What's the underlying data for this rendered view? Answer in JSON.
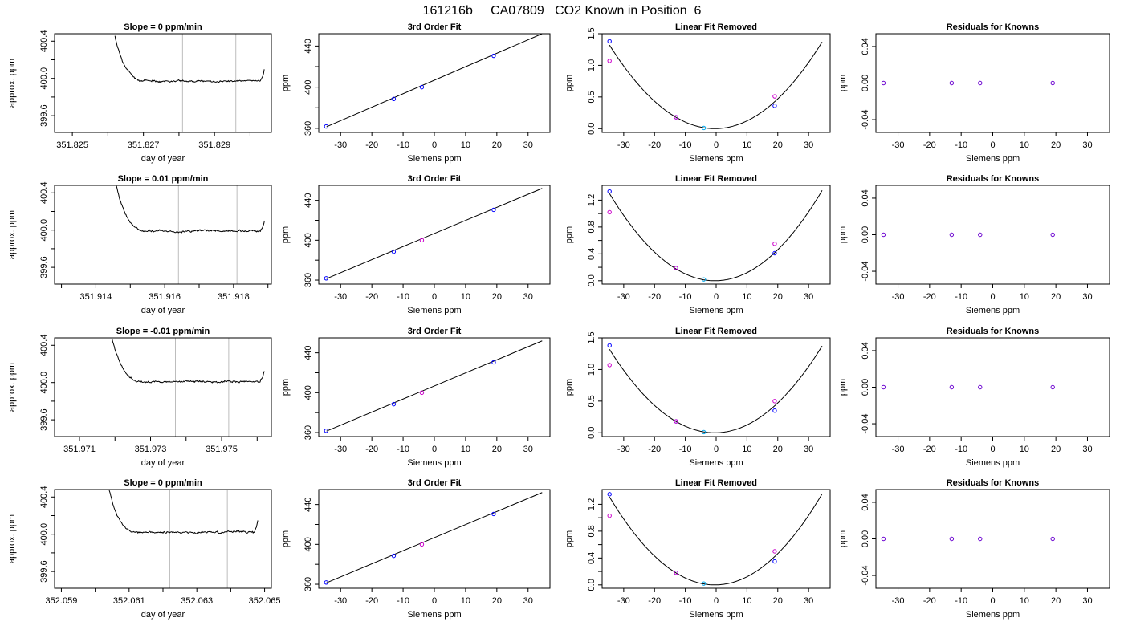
{
  "figure_title": "161216b     CA07809   CO2 Known in Position  6",
  "colors": {
    "marker_blue": "#0000ff",
    "marker_magenta": "#cc00cc",
    "marker_cyan": "#00aaee",
    "grid_vline": "#bdbdbd",
    "line": "#000000"
  },
  "chart_data": [
    {
      "row": 1,
      "col": 1,
      "type": "line",
      "title": "Slope =  0  ppm/min",
      "xlabel": "day of year",
      "ylabel": "approx. ppm",
      "xlim": [
        351.8245,
        351.8306
      ],
      "ylim": [
        399.42,
        400.48
      ],
      "xticks": [
        351.825,
        351.826,
        351.827,
        351.828,
        351.829,
        351.83
      ],
      "xticklabels": [
        "351.825",
        "",
        "351.827",
        "",
        "351.829",
        ""
      ],
      "yticks": [
        399.6,
        399.8,
        400.0,
        400.2,
        400.4
      ],
      "yticklabels": [
        "399.6",
        "",
        "400.0",
        "",
        "400.4"
      ],
      "vlines": [
        351.8281,
        351.8296
      ],
      "trace": {
        "x0": 351.8262,
        "x1": 351.8304,
        "level": 399.97,
        "noise": 0.012,
        "edge_left": 351.8264,
        "edge_right": 351.8303,
        "seed": 11
      }
    },
    {
      "row": 1,
      "col": 2,
      "type": "scatter",
      "title": "3rd Order Fit",
      "xlabel": "Siemens ppm",
      "ylabel": "ppm",
      "xlim": [
        -37,
        37
      ],
      "ylim": [
        356,
        452
      ],
      "xticks": [
        -30,
        -20,
        -10,
        0,
        10,
        20,
        30
      ],
      "yticks": [
        360,
        380,
        400,
        420,
        440
      ],
      "yticklabels": [
        "360",
        "",
        "400",
        "",
        "440"
      ],
      "line": {
        "x": [
          -34.5,
          34.5
        ],
        "y": [
          361.5,
          452
        ]
      },
      "points": [
        {
          "x": -34.6,
          "y": 361.8,
          "c": "blue"
        },
        {
          "x": -13,
          "y": 388.5,
          "c": "blue"
        },
        {
          "x": -4,
          "y": 400,
          "c": "blue"
        },
        {
          "x": 19,
          "y": 430.5,
          "c": "blue"
        }
      ]
    },
    {
      "row": 1,
      "col": 3,
      "type": "scatter",
      "title": "Linear Fit Removed",
      "xlabel": "Siemens ppm",
      "ylabel": "ppm",
      "xlim": [
        -37,
        37
      ],
      "ylim": [
        -0.06,
        1.5
      ],
      "xticks": [
        -30,
        -20,
        -10,
        0,
        10,
        20,
        30
      ],
      "yticks": [
        0,
        0.5,
        1.0,
        1.5
      ],
      "yticklabels": [
        "0.0",
        "0.5",
        "1.0",
        "1.5"
      ],
      "curve": {
        "a": 0.00113,
        "b": 0.00095,
        "c": 0.0
      },
      "points": [
        {
          "x": -34.6,
          "y": 1.38,
          "c": "blue"
        },
        {
          "x": -34.6,
          "y": 1.07,
          "c": "magenta"
        },
        {
          "x": -13,
          "y": 0.18,
          "c": "blue"
        },
        {
          "x": -13,
          "y": 0.18,
          "c": "magenta"
        },
        {
          "x": -4,
          "y": 0.01,
          "c": "cyan"
        },
        {
          "x": 19,
          "y": 0.36,
          "c": "blue"
        },
        {
          "x": 19,
          "y": 0.51,
          "c": "magenta"
        }
      ]
    },
    {
      "row": 1,
      "col": 4,
      "type": "scatter",
      "title": "Residuals for Knowns",
      "xlabel": "Siemens ppm",
      "ylabel": "ppm",
      "xlim": [
        -37,
        37
      ],
      "ylim": [
        -0.054,
        0.054
      ],
      "xticks": [
        -30,
        -20,
        -10,
        0,
        10,
        20,
        30
      ],
      "yticks": [
        -0.04,
        0,
        0.04
      ],
      "yticklabels": [
        "-0.04",
        "0.00",
        "0.04"
      ],
      "points": [
        {
          "x": -34.6,
          "y": 0,
          "c": "purple"
        },
        {
          "x": -13,
          "y": 0,
          "c": "purple"
        },
        {
          "x": -4,
          "y": 0,
          "c": "purple"
        },
        {
          "x": 19,
          "y": 0,
          "c": "purple"
        }
      ]
    },
    {
      "row": 2,
      "col": 1,
      "type": "line",
      "title": "Slope =  0.01  ppm/min",
      "xlabel": "day of year",
      "ylabel": "approx. ppm",
      "xlim": [
        351.9128,
        351.9191
      ],
      "ylim": [
        399.42,
        400.48
      ],
      "xticks": [
        351.913,
        351.914,
        351.915,
        351.916,
        351.917,
        351.918,
        351.919
      ],
      "xticklabels": [
        "",
        "351.914",
        "",
        "351.916",
        "",
        "351.918",
        ""
      ],
      "yticks": [
        399.6,
        399.8,
        400.0,
        400.2,
        400.4
      ],
      "yticklabels": [
        "399.6",
        "",
        "400.0",
        "",
        "400.4"
      ],
      "vlines": [
        351.9164,
        351.9181
      ],
      "trace": {
        "x0": 351.9146,
        "x1": 351.9189,
        "level": 399.99,
        "noise": 0.012,
        "edge_left": 351.9148,
        "edge_right": 351.9188,
        "seed": 23
      }
    },
    {
      "row": 2,
      "col": 2,
      "type": "scatter",
      "title": "3rd Order Fit",
      "xlabel": "Siemens ppm",
      "ylabel": "ppm",
      "xlim": [
        -37,
        37
      ],
      "ylim": [
        356,
        455
      ],
      "xticks": [
        -30,
        -20,
        -10,
        0,
        10,
        20,
        30
      ],
      "yticks": [
        360,
        380,
        400,
        420,
        440
      ],
      "yticklabels": [
        "360",
        "",
        "400",
        "",
        "440"
      ],
      "line": {
        "x": [
          -34.5,
          34.5
        ],
        "y": [
          361.5,
          452
        ]
      },
      "points": [
        {
          "x": -34.6,
          "y": 361.8,
          "c": "blue"
        },
        {
          "x": -13,
          "y": 388.5,
          "c": "blue"
        },
        {
          "x": -4,
          "y": 400,
          "c": "magenta"
        },
        {
          "x": 19,
          "y": 430.5,
          "c": "blue"
        }
      ]
    },
    {
      "row": 2,
      "col": 3,
      "type": "scatter",
      "title": "Linear Fit Removed",
      "xlabel": "Siemens ppm",
      "ylabel": "ppm",
      "xlim": [
        -37,
        37
      ],
      "ylim": [
        -0.05,
        1.42
      ],
      "xticks": [
        -30,
        -20,
        -10,
        0,
        10,
        20,
        30
      ],
      "yticks": [
        0,
        0.2,
        0.4,
        0.6,
        0.8,
        1.0,
        1.2
      ],
      "yticklabels": [
        "0.0",
        "0.4",
        "0.8",
        "1.2"
      ],
      "yticklabelvals": [
        0,
        0.4,
        0.8,
        1.2
      ],
      "curve": {
        "a": 0.00111,
        "b": 0.0009,
        "c": 0.0
      },
      "points": [
        {
          "x": -34.6,
          "y": 1.33,
          "c": "blue"
        },
        {
          "x": -34.6,
          "y": 1.02,
          "c": "magenta"
        },
        {
          "x": -13,
          "y": 0.19,
          "c": "blue"
        },
        {
          "x": -13,
          "y": 0.19,
          "c": "magenta"
        },
        {
          "x": -4,
          "y": 0.02,
          "c": "cyan"
        },
        {
          "x": 19,
          "y": 0.41,
          "c": "blue"
        },
        {
          "x": 19,
          "y": 0.55,
          "c": "magenta"
        }
      ]
    },
    {
      "row": 2,
      "col": 4,
      "type": "scatter",
      "title": "Residuals for Knowns",
      "xlabel": "Siemens ppm",
      "ylabel": "ppm",
      "xlim": [
        -37,
        37
      ],
      "ylim": [
        -0.054,
        0.054
      ],
      "xticks": [
        -30,
        -20,
        -10,
        0,
        10,
        20,
        30
      ],
      "yticks": [
        -0.04,
        0,
        0.04
      ],
      "yticklabels": [
        "-0.04",
        "0.00",
        "0.04"
      ],
      "points": [
        {
          "x": -34.6,
          "y": 0,
          "c": "purple"
        },
        {
          "x": -13,
          "y": 0,
          "c": "purple"
        },
        {
          "x": -4,
          "y": 0,
          "c": "purple"
        },
        {
          "x": 19,
          "y": 0,
          "c": "purple"
        }
      ]
    },
    {
      "row": 3,
      "col": 1,
      "type": "line",
      "title": "Slope =  -0.01  ppm/min",
      "xlabel": "day of year",
      "ylabel": "approx. ppm",
      "xlim": [
        351.9703,
        351.9764
      ],
      "ylim": [
        399.42,
        400.48
      ],
      "xticks": [
        351.971,
        351.972,
        351.973,
        351.974,
        351.975,
        351.976
      ],
      "xticklabels": [
        "351.971",
        "",
        "351.973",
        "",
        "351.975",
        ""
      ],
      "yticks": [
        399.6,
        399.8,
        400.0,
        400.2,
        400.4
      ],
      "yticklabels": [
        "399.6",
        "",
        "400.0",
        "",
        "400.4"
      ],
      "vlines": [
        351.9737,
        351.9752
      ],
      "trace": {
        "x0": 351.9719,
        "x1": 351.9762,
        "level": 400.01,
        "noise": 0.012,
        "edge_left": 351.9721,
        "edge_right": 351.9761,
        "seed": 37
      }
    },
    {
      "row": 3,
      "col": 2,
      "type": "scatter",
      "title": "3rd Order Fit",
      "xlabel": "Siemens ppm",
      "ylabel": "ppm",
      "xlim": [
        -37,
        37
      ],
      "ylim": [
        356,
        455
      ],
      "xticks": [
        -30,
        -20,
        -10,
        0,
        10,
        20,
        30
      ],
      "yticks": [
        360,
        380,
        400,
        420,
        440
      ],
      "yticklabels": [
        "360",
        "",
        "400",
        "",
        "440"
      ],
      "line": {
        "x": [
          -34.5,
          34.5
        ],
        "y": [
          361.5,
          452
        ]
      },
      "points": [
        {
          "x": -34.6,
          "y": 361.8,
          "c": "blue"
        },
        {
          "x": -13,
          "y": 388.5,
          "c": "blue"
        },
        {
          "x": -4,
          "y": 400,
          "c": "magenta"
        },
        {
          "x": 19,
          "y": 430.5,
          "c": "blue"
        }
      ]
    },
    {
      "row": 3,
      "col": 3,
      "type": "scatter",
      "title": "Linear Fit Removed",
      "xlabel": "Siemens ppm",
      "ylabel": "ppm",
      "xlim": [
        -37,
        37
      ],
      "ylim": [
        -0.06,
        1.5
      ],
      "xticks": [
        -30,
        -20,
        -10,
        0,
        10,
        20,
        30
      ],
      "yticks": [
        0,
        0.5,
        1.0,
        1.5
      ],
      "yticklabels": [
        "0.0",
        "0.5",
        "1.0",
        "1.5"
      ],
      "curve": {
        "a": 0.00113,
        "b": 0.001,
        "c": 0.0
      },
      "points": [
        {
          "x": -34.6,
          "y": 1.38,
          "c": "blue"
        },
        {
          "x": -34.6,
          "y": 1.07,
          "c": "magenta"
        },
        {
          "x": -13,
          "y": 0.18,
          "c": "blue"
        },
        {
          "x": -13,
          "y": 0.18,
          "c": "magenta"
        },
        {
          "x": -4,
          "y": 0.01,
          "c": "cyan"
        },
        {
          "x": 19,
          "y": 0.35,
          "c": "blue"
        },
        {
          "x": 19,
          "y": 0.5,
          "c": "magenta"
        }
      ]
    },
    {
      "row": 3,
      "col": 4,
      "type": "scatter",
      "title": "Residuals for Knowns",
      "xlabel": "Siemens ppm",
      "ylabel": "ppm",
      "xlim": [
        -37,
        37
      ],
      "ylim": [
        -0.054,
        0.054
      ],
      "xticks": [
        -30,
        -20,
        -10,
        0,
        10,
        20,
        30
      ],
      "yticks": [
        -0.04,
        0,
        0.04
      ],
      "yticklabels": [
        "-0.04",
        "0.00",
        "0.04"
      ],
      "points": [
        {
          "x": -34.6,
          "y": 0,
          "c": "purple"
        },
        {
          "x": -13,
          "y": 0,
          "c": "purple"
        },
        {
          "x": -4,
          "y": 0,
          "c": "purple"
        },
        {
          "x": 19,
          "y": 0,
          "c": "purple"
        }
      ]
    },
    {
      "row": 4,
      "col": 1,
      "type": "line",
      "title": "Slope =  0  ppm/min",
      "xlabel": "day of year",
      "ylabel": "approx. ppm",
      "xlim": [
        352.0588,
        352.0652
      ],
      "ylim": [
        399.42,
        400.48
      ],
      "xticks": [
        352.059,
        352.06,
        352.061,
        352.062,
        352.063,
        352.064,
        352.065
      ],
      "xticklabels": [
        "352.059",
        "",
        "352.061",
        "",
        "352.063",
        "",
        "352.065"
      ],
      "yticks": [
        399.6,
        399.8,
        400.0,
        400.2,
        400.4
      ],
      "yticklabels": [
        "399.6",
        "",
        "400.0",
        "",
        "400.4"
      ],
      "vlines": [
        352.0622,
        352.0639
      ],
      "trace": {
        "x0": 352.0604,
        "x1": 352.0648,
        "level": 400.02,
        "noise": 0.012,
        "edge_left": 352.0606,
        "edge_right": 352.0647,
        "seed": 53
      }
    },
    {
      "row": 4,
      "col": 2,
      "type": "scatter",
      "title": "3rd Order Fit",
      "xlabel": "Siemens ppm",
      "ylabel": "ppm",
      "xlim": [
        -37,
        37
      ],
      "ylim": [
        356,
        455
      ],
      "xticks": [
        -30,
        -20,
        -10,
        0,
        10,
        20,
        30
      ],
      "yticks": [
        360,
        380,
        400,
        420,
        440
      ],
      "yticklabels": [
        "360",
        "",
        "400",
        "",
        "440"
      ],
      "line": {
        "x": [
          -34.5,
          34.5
        ],
        "y": [
          361.5,
          452
        ]
      },
      "points": [
        {
          "x": -34.6,
          "y": 361.8,
          "c": "blue"
        },
        {
          "x": -13,
          "y": 388.5,
          "c": "blue"
        },
        {
          "x": -4,
          "y": 400,
          "c": "magenta"
        },
        {
          "x": 19,
          "y": 430.5,
          "c": "blue"
        }
      ]
    },
    {
      "row": 4,
      "col": 3,
      "type": "scatter",
      "title": "Linear Fit Removed",
      "xlabel": "Siemens ppm",
      "ylabel": "ppm",
      "xlim": [
        -37,
        37
      ],
      "ylim": [
        -0.05,
        1.42
      ],
      "xticks": [
        -30,
        -20,
        -10,
        0,
        10,
        20,
        30
      ],
      "yticks": [
        0,
        0.2,
        0.4,
        0.6,
        0.8,
        1.0,
        1.2
      ],
      "yticklabels": [
        "0.0",
        "0.4",
        "0.8",
        "1.2"
      ],
      "yticklabelvals": [
        0,
        0.4,
        0.8,
        1.2
      ],
      "curve": {
        "a": 0.00112,
        "b": 0.0009,
        "c": 0.0
      },
      "points": [
        {
          "x": -34.6,
          "y": 1.35,
          "c": "blue"
        },
        {
          "x": -34.6,
          "y": 1.03,
          "c": "magenta"
        },
        {
          "x": -13,
          "y": 0.18,
          "c": "blue"
        },
        {
          "x": -13,
          "y": 0.18,
          "c": "magenta"
        },
        {
          "x": -4,
          "y": 0.02,
          "c": "cyan"
        },
        {
          "x": 19,
          "y": 0.35,
          "c": "blue"
        },
        {
          "x": 19,
          "y": 0.5,
          "c": "magenta"
        }
      ]
    },
    {
      "row": 4,
      "col": 4,
      "type": "scatter",
      "title": "Residuals for Knowns",
      "xlabel": "Siemens ppm",
      "ylabel": "ppm",
      "xlim": [
        -37,
        37
      ],
      "ylim": [
        -0.054,
        0.054
      ],
      "xticks": [
        -30,
        -20,
        -10,
        0,
        10,
        20,
        30
      ],
      "yticks": [
        -0.04,
        0,
        0.04
      ],
      "yticklabels": [
        "-0.04",
        "0.00",
        "0.04"
      ],
      "points": [
        {
          "x": -34.6,
          "y": 0,
          "c": "purple"
        },
        {
          "x": -13,
          "y": 0,
          "c": "purple"
        },
        {
          "x": -4,
          "y": 0,
          "c": "purple"
        },
        {
          "x": 19,
          "y": 0,
          "c": "purple"
        }
      ]
    }
  ]
}
